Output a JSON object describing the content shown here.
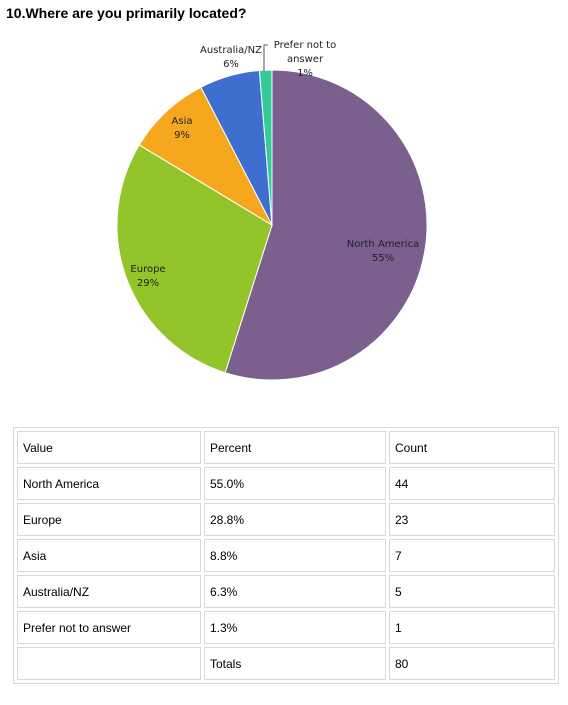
{
  "title": "10.Where are you primarily located?",
  "chart_data": {
    "type": "pie",
    "title": "10.Where are you primarily located?",
    "slices": [
      {
        "label": "North America",
        "value": 55.0,
        "display": "55%",
        "color": "#7a5f8f"
      },
      {
        "label": "Europe",
        "value": 28.8,
        "display": "29%",
        "color": "#93c52a"
      },
      {
        "label": "Asia",
        "value": 8.8,
        "display": "9%",
        "color": "#f5a81e"
      },
      {
        "label": "Australia/NZ",
        "value": 6.3,
        "display": "6%",
        "color": "#3f6fce"
      },
      {
        "label": "Prefer not to answer",
        "value": 1.3,
        "display": "1%",
        "color": "#33cc99"
      }
    ]
  },
  "table": {
    "headers": [
      "Value",
      "Percent",
      "Count"
    ],
    "rows": [
      [
        "North America",
        "55.0%",
        "44"
      ],
      [
        "Europe",
        "28.8%",
        "23"
      ],
      [
        "Asia",
        "8.8%",
        "7"
      ],
      [
        "Australia/NZ",
        "6.3%",
        "5"
      ],
      [
        "Prefer not to answer",
        "1.3%",
        "1"
      ],
      [
        "",
        "Totals",
        "80"
      ]
    ]
  }
}
